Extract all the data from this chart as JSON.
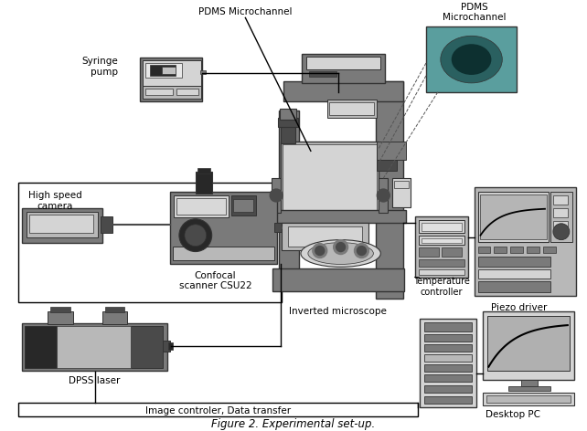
{
  "title": "Figure 2. Experimental set-up.",
  "background_color": "#ffffff",
  "labels": {
    "pdms_microchannel_top": "PDMS Microchannel",
    "pdms_microchannel_right": "PDMS\nMicrochannel",
    "syringe_pump": "Syringe\npump",
    "high_speed_camera": "High speed\ncamera",
    "confocal_scanner": "Confocal\nscanner CSU22",
    "inverted_microscope": "Inverted microscope",
    "temperature_controller": "Temperature\ncontroller",
    "piezo_driver": "Piezo driver",
    "dpss_laser": "DPSS laser",
    "image_controller": "Image controler, Data transfer",
    "desktop_pc": "Desktop PC"
  },
  "fig_width": 6.42,
  "fig_height": 4.72,
  "dpi": 100
}
